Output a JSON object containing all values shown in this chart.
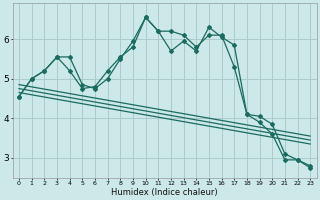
{
  "title": "",
  "xlabel": "Humidex (Indice chaleur)",
  "background_color": "#cce8e8",
  "grid_color": "#aacccc",
  "line_color": "#1a6b60",
  "xlim": [
    -0.5,
    23.5
  ],
  "ylim": [
    2.5,
    6.9
  ],
  "yticks": [
    3,
    4,
    5,
    6
  ],
  "xticks": [
    0,
    1,
    2,
    3,
    4,
    5,
    6,
    7,
    8,
    9,
    10,
    11,
    12,
    13,
    14,
    15,
    16,
    17,
    18,
    19,
    20,
    21,
    22,
    23
  ],
  "series": [
    {
      "x": [
        0,
        1,
        2,
        3,
        4,
        5,
        6,
        7,
        8,
        9,
        10,
        11,
        12,
        13,
        14,
        15,
        16,
        17,
        18,
        19,
        20,
        21,
        22,
        23
      ],
      "y": [
        4.55,
        5.0,
        5.2,
        5.55,
        5.55,
        4.85,
        4.75,
        5.0,
        5.5,
        5.95,
        6.55,
        6.2,
        6.2,
        6.1,
        5.8,
        6.1,
        6.1,
        5.3,
        4.1,
        3.9,
        3.6,
        2.95,
        2.95,
        2.8
      ],
      "marker": true
    },
    {
      "x": [
        0,
        1,
        2,
        3,
        4,
        5,
        6,
        7,
        8,
        9,
        10,
        11,
        12,
        13,
        14,
        15,
        16,
        17,
        18,
        19,
        20,
        21,
        22,
        23
      ],
      "y": [
        4.55,
        5.0,
        5.2,
        5.55,
        5.2,
        4.75,
        4.8,
        5.2,
        5.55,
        5.8,
        6.55,
        6.2,
        5.7,
        5.95,
        5.7,
        6.3,
        6.05,
        5.85,
        4.1,
        4.05,
        3.85,
        3.1,
        2.95,
        2.75
      ],
      "marker": true
    },
    {
      "x": [
        0,
        23
      ],
      "y": [
        4.85,
        3.55
      ],
      "marker": false
    },
    {
      "x": [
        0,
        23
      ],
      "y": [
        4.75,
        3.45
      ],
      "marker": false
    },
    {
      "x": [
        0,
        23
      ],
      "y": [
        4.65,
        3.35
      ],
      "marker": false
    }
  ]
}
